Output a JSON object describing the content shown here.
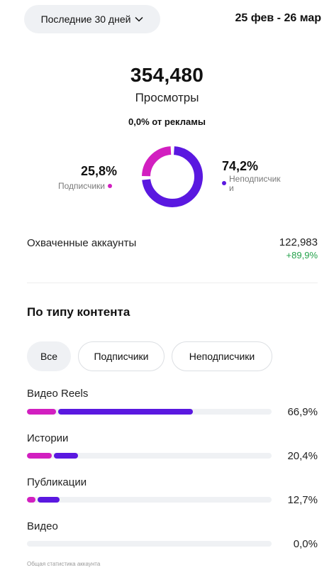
{
  "header": {
    "range_label": "Последние 30 дней",
    "date_range": "25 фев - 26 мар"
  },
  "views": {
    "total": "354,480",
    "label": "Просмотры",
    "ads": "0,0% от рекламы"
  },
  "audience": {
    "followers_pct": "25,8%",
    "followers_label": "Подписчики",
    "followers_value": 25.8,
    "non_followers_pct": "74,2%",
    "non_followers_label": "Неподписчик\nи",
    "non_followers_value": 74.2,
    "colors": {
      "followers": "#d21fc0",
      "non_followers": "#5a18e0"
    }
  },
  "reach": {
    "label": "Охваченные аккаунты",
    "value": "122,983",
    "delta": "+89,9%"
  },
  "content_type": {
    "title": "По типу контента",
    "filters": [
      "Все",
      "Подписчики",
      "Неподписчики"
    ],
    "selected_filter": "Все",
    "rows": [
      {
        "label": "Видео Reels",
        "pct": "66,9%",
        "followers_share": 0.12,
        "non_followers_share": 0.55
      },
      {
        "label": "Истории",
        "pct": "20,4%",
        "followers_share": 0.1,
        "non_followers_share": 0.1
      },
      {
        "label": "Публикации",
        "pct": "12,7%",
        "followers_share": 0.035,
        "non_followers_share": 0.09
      },
      {
        "label": "Видео",
        "pct": "0,0%",
        "followers_share": 0,
        "non_followers_share": 0
      }
    ]
  },
  "footer": "Общая статистика аккаунта"
}
